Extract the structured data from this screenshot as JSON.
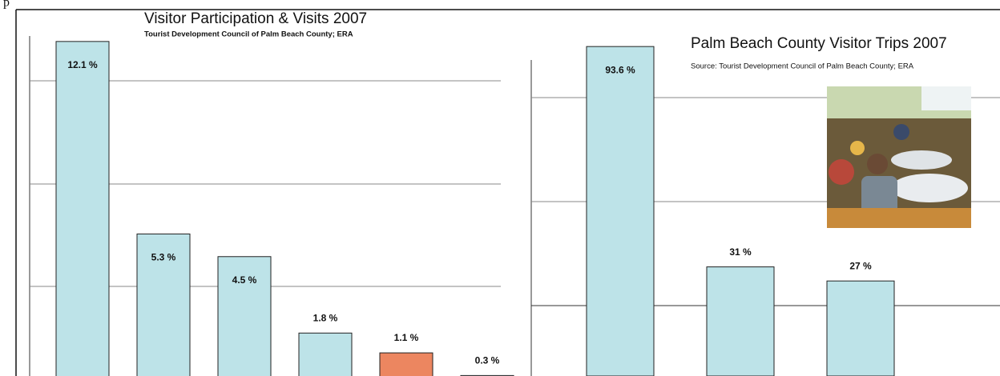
{
  "page_fragment": "p",
  "chart_data": [
    {
      "type": "bar",
      "title": "Visitor Participation & Visits 2007",
      "subtitle": "Tourist Development Council of Palm Beach County; ERA",
      "values": [
        12.1,
        5.3,
        4.5,
        1.8,
        1.1,
        0.3
      ],
      "value_labels": [
        "12.1 %",
        "5.3 %",
        "4.5 %",
        "1.8 %",
        "1.1 %",
        "0.3 %"
      ],
      "colors": [
        "#bde3e8",
        "#bde3e8",
        "#bde3e8",
        "#bde3e8",
        "#ec8660",
        "#bde3e8"
      ],
      "ylim": [
        0,
        13
      ]
    },
    {
      "type": "bar",
      "title": "Palm Beach County Visitor Trips 2007",
      "subtitle": "Source: Tourist Development Council of Palm Beach County; ERA",
      "values": [
        93.6,
        31,
        27
      ],
      "value_labels": [
        "93.6 %",
        "31 %",
        "27 %"
      ],
      "colors": [
        "#bde3e8",
        "#bde3e8",
        "#bde3e8"
      ],
      "ylim": [
        0,
        100
      ]
    }
  ]
}
